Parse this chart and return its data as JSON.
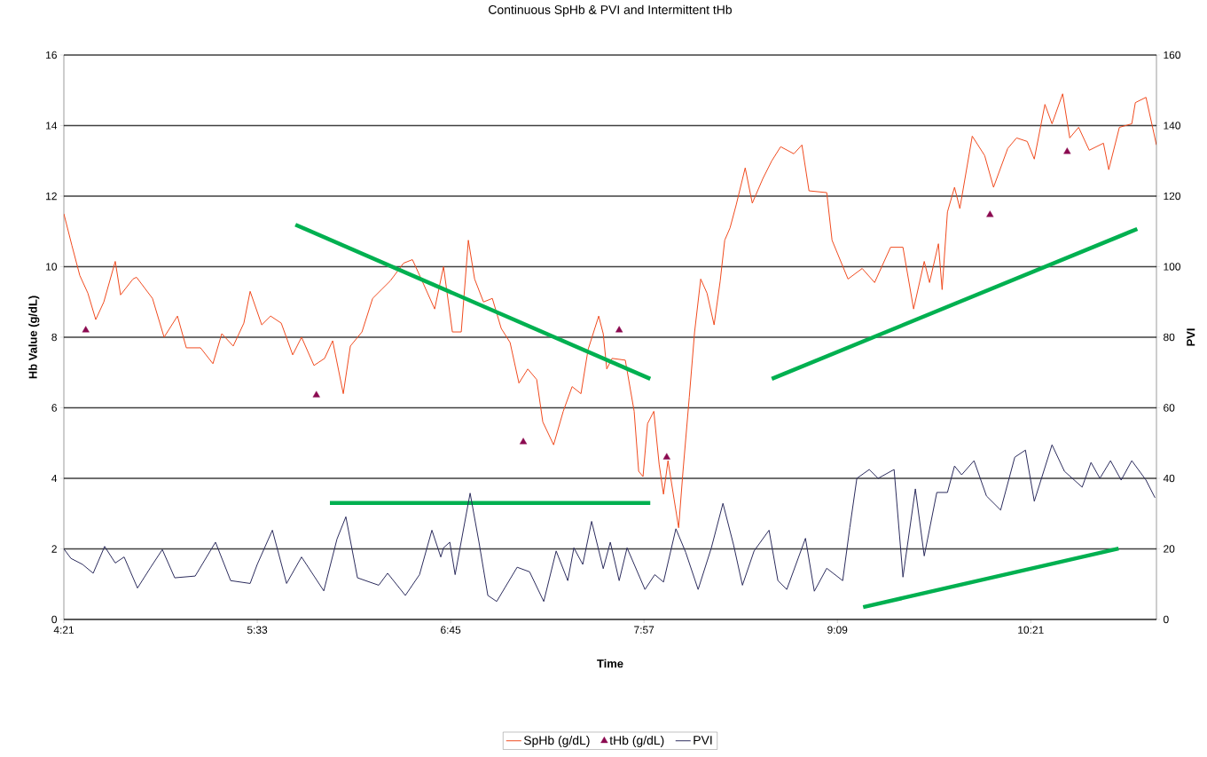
{
  "chart_data": {
    "type": "line",
    "title": "Continuous SpHb & PVI and Intermittent tHb",
    "xlabel": "Time",
    "ylabel": "Hb Value (g/dL)",
    "y2label": "PVI",
    "xlim": [
      4.35,
      11.13
    ],
    "xticks": [
      {
        "value": 4.35,
        "label": "4:21"
      },
      {
        "value": 5.55,
        "label": "5:33"
      },
      {
        "value": 6.75,
        "label": "6:45"
      },
      {
        "value": 7.95,
        "label": "7:57"
      },
      {
        "value": 9.15,
        "label": "9:09"
      },
      {
        "value": 10.35,
        "label": "10:21"
      }
    ],
    "ylim": [
      0,
      16
    ],
    "yticks": [
      0,
      2,
      4,
      6,
      8,
      10,
      12,
      14,
      16
    ],
    "y2lim": [
      0,
      160
    ],
    "y2ticks": [
      0,
      20,
      40,
      60,
      80,
      100,
      120,
      140,
      160
    ],
    "grid": "y",
    "legend": "bottom",
    "series": [
      {
        "name": "SpHb (g/dL)",
        "color": "#f04a1e",
        "x": [
          4.35,
          4.4,
          4.449,
          4.499,
          4.548,
          4.598,
          4.669,
          4.702,
          4.779,
          4.801,
          4.9,
          4.972,
          5.055,
          5.11,
          5.198,
          5.275,
          5.33,
          5.401,
          5.467,
          5.506,
          5.578,
          5.633,
          5.699,
          5.77,
          5.825,
          5.902,
          5.968,
          6.018,
          6.084,
          6.128,
          6.2,
          6.266,
          6.321,
          6.376,
          6.458,
          6.513,
          6.568,
          6.651,
          6.706,
          6.761,
          6.816,
          6.86,
          6.899,
          6.954,
          7.009,
          7.064,
          7.119,
          7.174,
          7.229,
          7.284,
          7.322,
          7.389,
          7.449,
          7.504,
          7.559,
          7.603,
          7.669,
          7.697,
          7.719,
          7.752,
          7.834,
          7.889,
          7.917,
          7.944,
          7.972,
          8.011,
          8.044,
          8.071,
          8.099,
          8.137,
          8.165,
          8.192,
          8.231,
          8.264,
          8.302,
          8.341,
          8.385,
          8.423,
          8.451,
          8.484,
          8.522,
          8.578,
          8.622,
          8.688,
          8.743,
          8.798,
          8.88,
          8.93,
          8.974,
          9.084,
          9.117,
          9.216,
          9.304,
          9.381,
          9.48,
          9.557,
          9.623,
          9.689,
          9.722,
          9.777,
          9.8,
          9.833,
          9.877,
          9.91,
          9.987,
          10.064,
          10.119,
          10.207,
          10.262,
          10.328,
          10.372,
          10.438,
          10.482,
          10.548,
          10.592,
          10.647,
          10.713,
          10.801,
          10.834,
          10.9,
          10.977,
          10.999,
          11.065,
          11.13
        ],
        "values": [
          11.5,
          10.6,
          9.75,
          9.25,
          8.5,
          9.0,
          10.15,
          9.2,
          9.65,
          9.7,
          9.1,
          8.0,
          8.6,
          7.7,
          7.7,
          7.25,
          8.1,
          7.75,
          8.4,
          9.3,
          8.35,
          8.6,
          8.4,
          7.5,
          8.0,
          7.2,
          7.4,
          7.9,
          6.4,
          7.75,
          8.15,
          9.1,
          9.35,
          9.6,
          10.1,
          10.2,
          9.65,
          8.8,
          10.0,
          8.15,
          8.15,
          10.75,
          9.65,
          9.0,
          9.1,
          8.25,
          7.85,
          6.7,
          7.1,
          6.8,
          5.6,
          4.95,
          5.9,
          6.6,
          6.4,
          7.65,
          8.6,
          8.1,
          7.1,
          7.4,
          7.35,
          5.9,
          4.2,
          4.05,
          5.55,
          5.9,
          4.4,
          3.55,
          4.5,
          3.4,
          2.6,
          4.2,
          6.3,
          8.15,
          9.65,
          9.25,
          8.35,
          9.6,
          10.75,
          11.1,
          11.75,
          12.8,
          11.8,
          12.5,
          13.0,
          13.4,
          13.2,
          13.45,
          12.15,
          12.1,
          10.75,
          9.65,
          9.95,
          9.55,
          10.55,
          10.55,
          8.8,
          10.15,
          9.55,
          10.65,
          9.35,
          11.55,
          12.25,
          11.65,
          13.7,
          13.15,
          12.25,
          13.35,
          13.65,
          13.55,
          13.05,
          14.6,
          14.05,
          14.9,
          13.65,
          13.95,
          13.3,
          13.5,
          12.75,
          13.95,
          14.05,
          14.65,
          14.8,
          13.45
        ]
      },
      {
        "name": "tHb (g/dL)",
        "type": "scatter",
        "marker": "triangle",
        "color": "#8b0a50",
        "x": [
          4.486,
          5.917,
          7.201,
          7.796,
          8.091,
          10.097,
          10.576
        ],
        "values": [
          8.2,
          6.36,
          5.03,
          8.2,
          4.6,
          11.47,
          13.26
        ]
      },
      {
        "name": "PVI",
        "axis": "y2",
        "color": "#2b2b5c",
        "x": [
          4.35,
          4.394,
          4.466,
          4.532,
          4.603,
          4.669,
          4.724,
          4.807,
          4.889,
          4.961,
          5.038,
          5.165,
          5.291,
          5.385,
          5.506,
          5.55,
          5.644,
          5.732,
          5.825,
          5.963,
          6.045,
          6.1,
          6.172,
          6.304,
          6.359,
          6.469,
          6.557,
          6.634,
          6.689,
          6.706,
          6.745,
          6.778,
          6.871,
          6.926,
          6.981,
          7.036,
          7.163,
          7.24,
          7.328,
          7.405,
          7.477,
          7.515,
          7.57,
          7.625,
          7.697,
          7.741,
          7.796,
          7.845,
          7.956,
          8.017,
          8.071,
          8.148,
          8.209,
          8.286,
          8.368,
          8.44,
          8.506,
          8.561,
          8.633,
          8.726,
          8.781,
          8.836,
          8.952,
          9.007,
          9.084,
          9.183,
          9.227,
          9.271,
          9.348,
          9.403,
          9.502,
          9.557,
          9.634,
          9.689,
          9.767,
          9.833,
          9.877,
          9.921,
          9.998,
          10.075,
          10.163,
          10.251,
          10.317,
          10.372,
          10.482,
          10.559,
          10.669,
          10.724,
          10.779,
          10.845,
          10.911,
          10.977,
          11.065,
          11.121
        ],
        "values": [
          20,
          17.3,
          15.6,
          13.1,
          20.7,
          16.0,
          17.7,
          8.9,
          14.8,
          19.8,
          11.8,
          12.3,
          21.9,
          11.0,
          10.2,
          15.6,
          25.3,
          10.2,
          17.7,
          8.1,
          22.8,
          29.1,
          11.8,
          9.7,
          13.1,
          6.8,
          12.7,
          25.3,
          17.7,
          20.3,
          21.9,
          12.7,
          35.8,
          21.9,
          6.8,
          5.1,
          14.8,
          13.5,
          5.1,
          19.4,
          11.0,
          20.3,
          15.6,
          27.8,
          14.4,
          21.9,
          11.0,
          20.3,
          8.5,
          12.7,
          10.6,
          25.7,
          19.0,
          8.5,
          20.3,
          32.9,
          21.1,
          9.7,
          19.4,
          25.3,
          11.0,
          8.5,
          23,
          8,
          14.5,
          11,
          26,
          40,
          42.5,
          40,
          42.5,
          12,
          37,
          18,
          36,
          36,
          43.5,
          41,
          45,
          35,
          31,
          46,
          48,
          33.5,
          49.5,
          42,
          37.5,
          44.5,
          40,
          45,
          39.5,
          45,
          39.5,
          34.5
        ]
      },
      {
        "color": "#00b050",
        "x": [
          5.787,
          7.989
        ],
        "values": [
          11.19,
          6.82
        ]
      },
      {
        "color": "#00b050",
        "x": [
          6.001,
          7.989
        ],
        "values": [
          3.3,
          3.3
        ]
      },
      {
        "color": "#00b050",
        "x": [
          8.743,
          11.011
        ],
        "values": [
          6.82,
          11.07
        ]
      },
      {
        "color": "#00b050",
        "x": [
          9.31,
          10.895
        ],
        "values": [
          0.35,
          2.01
        ]
      }
    ]
  }
}
